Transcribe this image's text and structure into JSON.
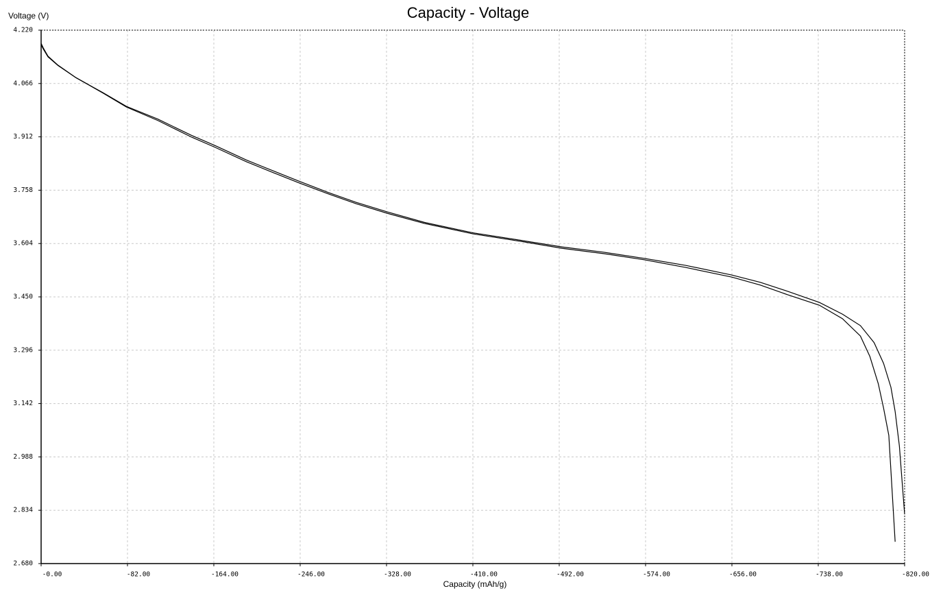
{
  "chart_data": {
    "type": "line",
    "title": "Capacity - Voltage",
    "ylabel": "Voltage (V)",
    "xlabel": "Capacity (mAh/g)",
    "xlim": [
      0,
      -820
    ],
    "ylim": [
      2.68,
      4.22
    ],
    "grid": true,
    "xticks": [
      {
        "value": 0,
        "label": "-0.00"
      },
      {
        "value": -82,
        "label": "-82.00"
      },
      {
        "value": -164,
        "label": "-164.00"
      },
      {
        "value": -246,
        "label": "-246.00"
      },
      {
        "value": -328,
        "label": "-328.00"
      },
      {
        "value": -410,
        "label": "-410.00"
      },
      {
        "value": -492,
        "label": "-492.00"
      },
      {
        "value": -574,
        "label": "-574.00"
      },
      {
        "value": -656,
        "label": "-656.00"
      },
      {
        "value": -738,
        "label": "-738.00"
      },
      {
        "value": -820,
        "label": "-820.00"
      }
    ],
    "yticks": [
      {
        "value": 4.22,
        "label": "4.220"
      },
      4.066,
      3.912,
      3.758,
      3.604,
      {
        "value": 3.45,
        "label": "3.450"
      },
      3.296,
      3.142,
      2.988,
      2.834,
      {
        "value": 2.68,
        "label": "2.680"
      }
    ],
    "series": [
      {
        "color": "#000000",
        "x": [
          0,
          -2,
          -6.5,
          -16,
          -33,
          -59,
          -81,
          -111,
          -143,
          -165,
          -195,
          -221,
          -245,
          -273,
          -299,
          -329,
          -364,
          -410,
          -456,
          -495,
          -534,
          -573,
          -612,
          -656,
          -683,
          -709,
          -739,
          -761,
          -778,
          -787,
          -795,
          -800,
          -805,
          -811
        ],
        "values": [
          4.182,
          4.169,
          4.145,
          4.119,
          4.083,
          4.038,
          3.998,
          3.959,
          3.911,
          3.882,
          3.84,
          3.808,
          3.779,
          3.747,
          3.719,
          3.691,
          3.662,
          3.632,
          3.61,
          3.59,
          3.575,
          3.557,
          3.535,
          3.507,
          3.484,
          3.456,
          3.426,
          3.387,
          3.337,
          3.278,
          3.199,
          3.129,
          3.05,
          2.743
        ]
      },
      {
        "color": "#000000",
        "x": [
          0,
          -2,
          -6.5,
          -16,
          -33,
          -59,
          -81,
          -111,
          -143,
          -165,
          -195,
          -221,
          -245,
          -273,
          -299,
          -329,
          -364,
          -410,
          -456,
          -495,
          -534,
          -573,
          -612,
          -656,
          -683,
          -709,
          -739,
          -761,
          -778,
          -791,
          -800,
          -807,
          -811,
          -815,
          -820
        ],
        "values": [
          4.178,
          4.166,
          4.143,
          4.118,
          4.083,
          4.039,
          4.0,
          3.963,
          3.916,
          3.887,
          3.845,
          3.813,
          3.784,
          3.751,
          3.723,
          3.695,
          3.665,
          3.635,
          3.613,
          3.594,
          3.579,
          3.561,
          3.541,
          3.513,
          3.492,
          3.466,
          3.434,
          3.4,
          3.367,
          3.318,
          3.258,
          3.189,
          3.119,
          3.02,
          2.822
        ]
      }
    ]
  }
}
